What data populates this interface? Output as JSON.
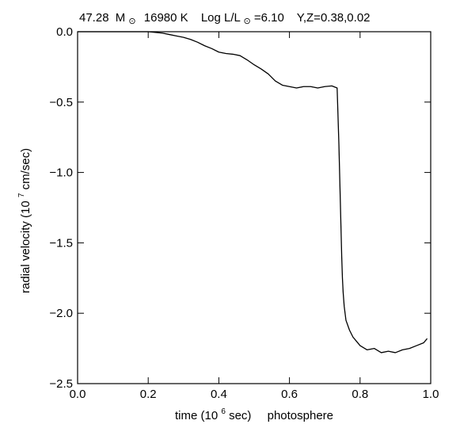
{
  "chart_data": {
    "type": "line",
    "title_parts": {
      "mass_value": "47.28",
      "mass_symbol": "M",
      "sun_symbol": "⊙",
      "temperature": "16980 K",
      "log_prefix": "Log L/L",
      "log_value": "=6.10",
      "composition": "Y,Z=0.38,0.02"
    },
    "xlabel": {
      "prefix": "time (10",
      "exponent": "6",
      "suffix": " sec)",
      "note": "photosphere"
    },
    "ylabel": {
      "prefix": "radial velocity (10",
      "exponent": "7",
      "suffix": "  cm/sec)"
    },
    "xlim": [
      0.0,
      1.0
    ],
    "ylim": [
      -2.5,
      0.0
    ],
    "xticks": [
      {
        "value": 0.0,
        "label": "0.0"
      },
      {
        "value": 0.2,
        "label": "0.2"
      },
      {
        "value": 0.4,
        "label": "0.4"
      },
      {
        "value": 0.6,
        "label": "0.6"
      },
      {
        "value": 0.8,
        "label": "0.8"
      },
      {
        "value": 1.0,
        "label": "1.0"
      }
    ],
    "yticks": [
      {
        "value": 0.0,
        "label": "0.0"
      },
      {
        "value": -0.5,
        "label": "−0.5"
      },
      {
        "value": -1.0,
        "label": "−1.0"
      },
      {
        "value": -1.5,
        "label": "−1.5"
      },
      {
        "value": -2.0,
        "label": "−2.0"
      },
      {
        "value": -2.5,
        "label": "−2.5"
      }
    ],
    "grid": false,
    "series": [
      {
        "color": "#000000",
        "x": [
          0.0,
          0.03,
          0.06,
          0.09,
          0.12,
          0.15,
          0.18,
          0.2,
          0.22,
          0.24,
          0.26,
          0.28,
          0.3,
          0.32,
          0.34,
          0.36,
          0.38,
          0.4,
          0.42,
          0.44,
          0.46,
          0.48,
          0.5,
          0.52,
          0.54,
          0.56,
          0.58,
          0.6,
          0.62,
          0.64,
          0.66,
          0.68,
          0.7,
          0.72,
          0.735,
          0.74,
          0.745,
          0.748,
          0.75,
          0.752,
          0.755,
          0.76,
          0.77,
          0.78,
          0.79,
          0.8,
          0.82,
          0.84,
          0.86,
          0.88,
          0.9,
          0.92,
          0.94,
          0.96,
          0.98,
          0.99
        ],
        "y": [
          0.0,
          0.0,
          0.0,
          0.0,
          0.0,
          0.0,
          0.0,
          0.0,
          -0.005,
          -0.01,
          -0.02,
          -0.03,
          -0.04,
          -0.055,
          -0.075,
          -0.1,
          -0.12,
          -0.145,
          -0.155,
          -0.16,
          -0.17,
          -0.2,
          -0.235,
          -0.265,
          -0.3,
          -0.35,
          -0.38,
          -0.39,
          -0.4,
          -0.39,
          -0.39,
          -0.4,
          -0.39,
          -0.385,
          -0.4,
          -0.8,
          -1.3,
          -1.6,
          -1.75,
          -1.85,
          -1.95,
          -2.05,
          -2.12,
          -2.17,
          -2.2,
          -2.23,
          -2.26,
          -2.25,
          -2.28,
          -2.27,
          -2.28,
          -2.26,
          -2.25,
          -2.23,
          -2.21,
          -2.18
        ]
      }
    ]
  }
}
